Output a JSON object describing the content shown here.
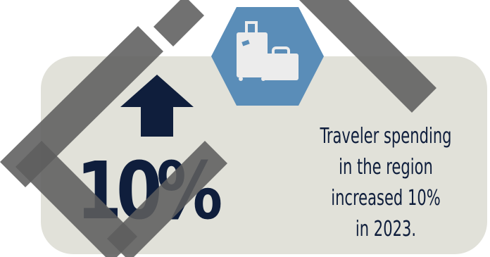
{
  "stat": {
    "value": "10%",
    "icon": "up-arrow-icon",
    "accent": "#0f1e3c"
  },
  "badge": {
    "icon": "luggage-icon",
    "color": "#5a8db8"
  },
  "caption": {
    "lines": [
      "Traveler spending",
      "in the region",
      "increased 10%",
      "in 2023."
    ]
  },
  "colors": {
    "card": "#e1e1d9",
    "stripes": "#5d5d5d",
    "text": "#0f1e3c"
  }
}
